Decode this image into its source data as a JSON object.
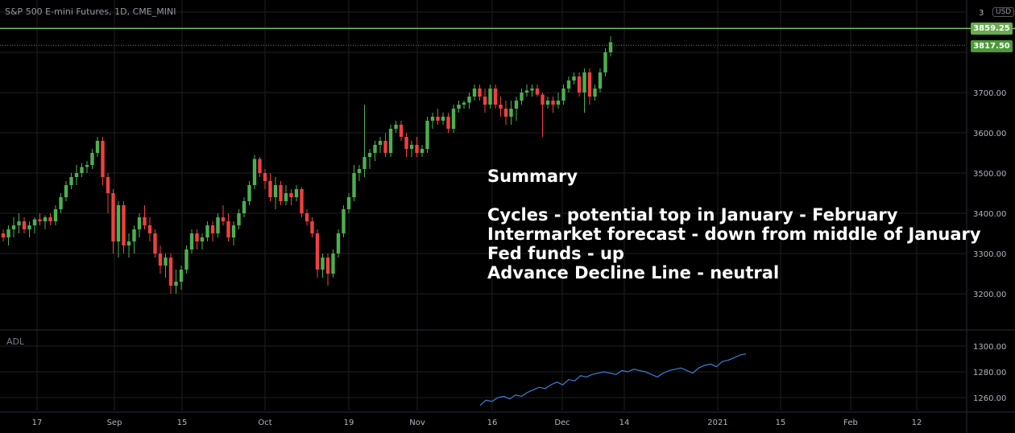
{
  "header": {
    "symbol_title": "S&P 500 E-mini Futures, 1D, CME_MINI",
    "currency": "USD",
    "price_axis_top_partial": "3"
  },
  "indicator": {
    "label": "ADL"
  },
  "summary": {
    "heading": "Summary",
    "lines": [
      "Cycles - potential top in January - February",
      "Intermarket forecast - down from middle of January",
      "Fed funds - up",
      "Advance Decline Line - neutral"
    ]
  },
  "price_tags": {
    "resistance": {
      "label": "3859.25",
      "color": "#6aaa50"
    },
    "last": {
      "label": "3817.50",
      "color": "#4c9a3a"
    }
  },
  "colors": {
    "up": "#4caf50",
    "down": "#ef4040",
    "adl_line": "#3d7fd9",
    "resistance_line": "#7bc46a",
    "grid": "#1f1f1f"
  },
  "chart_data": {
    "type": "candlestick",
    "price_axis": {
      "ticks": [
        3700,
        3600,
        3500,
        3400,
        3300,
        3200
      ],
      "tick_labels": [
        "3700.00",
        "3600.00",
        "3500.00",
        "3400.00",
        "3300.00",
        "3200.00"
      ]
    },
    "indicator_axis": {
      "ticks": [
        1300,
        1280,
        1260
      ],
      "tick_labels": [
        "1300.00",
        "1280.00",
        "1260.00"
      ]
    },
    "time_axis": {
      "labels": [
        "17",
        "Sep",
        "15",
        "Oct",
        "19",
        "Nov",
        "16",
        "Dec",
        "14",
        "2021",
        "15",
        "Feb",
        "12"
      ]
    },
    "horizontal_levels": [
      3859.25,
      3817.5
    ],
    "ohlc": [
      [
        3350,
        3360,
        3330,
        3340
      ],
      [
        3340,
        3370,
        3320,
        3360
      ],
      [
        3360,
        3390,
        3340,
        3370
      ],
      [
        3370,
        3400,
        3350,
        3380
      ],
      [
        3380,
        3390,
        3350,
        3360
      ],
      [
        3360,
        3380,
        3340,
        3370
      ],
      [
        3370,
        3390,
        3350,
        3385
      ],
      [
        3385,
        3400,
        3370,
        3380
      ],
      [
        3380,
        3395,
        3360,
        3390
      ],
      [
        3390,
        3400,
        3370,
        3380
      ],
      [
        3380,
        3420,
        3370,
        3410
      ],
      [
        3410,
        3450,
        3400,
        3440
      ],
      [
        3440,
        3480,
        3430,
        3470
      ],
      [
        3470,
        3500,
        3460,
        3490
      ],
      [
        3490,
        3520,
        3470,
        3500
      ],
      [
        3500,
        3525,
        3490,
        3515
      ],
      [
        3515,
        3530,
        3500,
        3520
      ],
      [
        3520,
        3560,
        3510,
        3550
      ],
      [
        3550,
        3590,
        3540,
        3580
      ],
      [
        3580,
        3590,
        3470,
        3490
      ],
      [
        3490,
        3500,
        3400,
        3450
      ],
      [
        3450,
        3460,
        3300,
        3330
      ],
      [
        3330,
        3430,
        3290,
        3420
      ],
      [
        3420,
        3430,
        3300,
        3320
      ],
      [
        3320,
        3350,
        3290,
        3330
      ],
      [
        3330,
        3370,
        3300,
        3360
      ],
      [
        3360,
        3400,
        3340,
        3390
      ],
      [
        3390,
        3420,
        3360,
        3370
      ],
      [
        3370,
        3390,
        3330,
        3350
      ],
      [
        3350,
        3360,
        3290,
        3300
      ],
      [
        3300,
        3320,
        3250,
        3270
      ],
      [
        3270,
        3300,
        3240,
        3290
      ],
      [
        3290,
        3300,
        3200,
        3220
      ],
      [
        3220,
        3260,
        3200,
        3230
      ],
      [
        3230,
        3270,
        3210,
        3260
      ],
      [
        3260,
        3320,
        3250,
        3310
      ],
      [
        3310,
        3360,
        3300,
        3350
      ],
      [
        3350,
        3360,
        3310,
        3330
      ],
      [
        3330,
        3350,
        3310,
        3340
      ],
      [
        3340,
        3380,
        3330,
        3370
      ],
      [
        3370,
        3380,
        3330,
        3350
      ],
      [
        3350,
        3400,
        3340,
        3390
      ],
      [
        3390,
        3420,
        3370,
        3380
      ],
      [
        3380,
        3400,
        3330,
        3340
      ],
      [
        3340,
        3380,
        3320,
        3370
      ],
      [
        3370,
        3410,
        3360,
        3400
      ],
      [
        3400,
        3440,
        3390,
        3430
      ],
      [
        3430,
        3480,
        3420,
        3470
      ],
      [
        3470,
        3545,
        3460,
        3535
      ],
      [
        3535,
        3540,
        3490,
        3500
      ],
      [
        3500,
        3510,
        3460,
        3480
      ],
      [
        3480,
        3500,
        3430,
        3440
      ],
      [
        3440,
        3490,
        3410,
        3470
      ],
      [
        3470,
        3480,
        3420,
        3430
      ],
      [
        3430,
        3470,
        3420,
        3450
      ],
      [
        3450,
        3460,
        3420,
        3440
      ],
      [
        3440,
        3470,
        3430,
        3460
      ],
      [
        3460,
        3465,
        3390,
        3400
      ],
      [
        3400,
        3410,
        3370,
        3380
      ],
      [
        3380,
        3390,
        3340,
        3350
      ],
      [
        3350,
        3360,
        3240,
        3260
      ],
      [
        3260,
        3300,
        3240,
        3290
      ],
      [
        3290,
        3300,
        3220,
        3250
      ],
      [
        3250,
        3310,
        3240,
        3300
      ],
      [
        3300,
        3360,
        3290,
        3350
      ],
      [
        3350,
        3420,
        3340,
        3410
      ],
      [
        3410,
        3450,
        3400,
        3440
      ],
      [
        3440,
        3520,
        3430,
        3500
      ],
      [
        3500,
        3520,
        3480,
        3510
      ],
      [
        3510,
        3670,
        3490,
        3540
      ],
      [
        3540,
        3560,
        3510,
        3550
      ],
      [
        3550,
        3580,
        3530,
        3570
      ],
      [
        3570,
        3590,
        3550,
        3580
      ],
      [
        3580,
        3600,
        3540,
        3550
      ],
      [
        3550,
        3620,
        3540,
        3610
      ],
      [
        3610,
        3630,
        3600,
        3620
      ],
      [
        3620,
        3630,
        3580,
        3590
      ],
      [
        3590,
        3600,
        3540,
        3560
      ],
      [
        3560,
        3580,
        3540,
        3570
      ],
      [
        3570,
        3590,
        3540,
        3550
      ],
      [
        3550,
        3570,
        3540,
        3560
      ],
      [
        3560,
        3640,
        3550,
        3630
      ],
      [
        3630,
        3650,
        3610,
        3640
      ],
      [
        3640,
        3660,
        3620,
        3630
      ],
      [
        3630,
        3650,
        3620,
        3640
      ],
      [
        3640,
        3650,
        3600,
        3610
      ],
      [
        3610,
        3670,
        3600,
        3660
      ],
      [
        3660,
        3680,
        3650,
        3670
      ],
      [
        3670,
        3680,
        3660,
        3675
      ],
      [
        3675,
        3700,
        3660,
        3690
      ],
      [
        3690,
        3720,
        3680,
        3710
      ],
      [
        3710,
        3720,
        3680,
        3690
      ],
      [
        3690,
        3710,
        3650,
        3670
      ],
      [
        3670,
        3720,
        3660,
        3710
      ],
      [
        3710,
        3720,
        3660,
        3670
      ],
      [
        3670,
        3690,
        3640,
        3660
      ],
      [
        3660,
        3680,
        3620,
        3640
      ],
      [
        3640,
        3680,
        3620,
        3660
      ],
      [
        3660,
        3690,
        3630,
        3680
      ],
      [
        3680,
        3710,
        3670,
        3700
      ],
      [
        3700,
        3720,
        3690,
        3705
      ],
      [
        3705,
        3720,
        3690,
        3710
      ],
      [
        3710,
        3720,
        3690,
        3695
      ],
      [
        3695,
        3700,
        3590,
        3670
      ],
      [
        3670,
        3690,
        3660,
        3680
      ],
      [
        3680,
        3690,
        3650,
        3670
      ],
      [
        3670,
        3700,
        3660,
        3680
      ],
      [
        3680,
        3720,
        3670,
        3710
      ],
      [
        3710,
        3740,
        3700,
        3730
      ],
      [
        3730,
        3750,
        3720,
        3740
      ],
      [
        3740,
        3750,
        3690,
        3700
      ],
      [
        3700,
        3760,
        3650,
        3750
      ],
      [
        3750,
        3760,
        3670,
        3690
      ],
      [
        3690,
        3720,
        3680,
        3710
      ],
      [
        3710,
        3760,
        3700,
        3750
      ],
      [
        3750,
        3810,
        3740,
        3800
      ],
      [
        3800,
        3840,
        3790,
        3825
      ]
    ],
    "adl_series": [
      1254,
      1258,
      1257,
      1260,
      1261,
      1259,
      1262,
      1261,
      1264,
      1266,
      1268,
      1267,
      1270,
      1272,
      1270,
      1274,
      1273,
      1277,
      1276,
      1278,
      1279,
      1280,
      1279,
      1278,
      1281,
      1280,
      1282,
      1281,
      1280,
      1278,
      1276,
      1279,
      1281,
      1282,
      1283,
      1281,
      1279,
      1283,
      1285,
      1286,
      1284,
      1288,
      1289,
      1291,
      1293,
      1294
    ]
  }
}
